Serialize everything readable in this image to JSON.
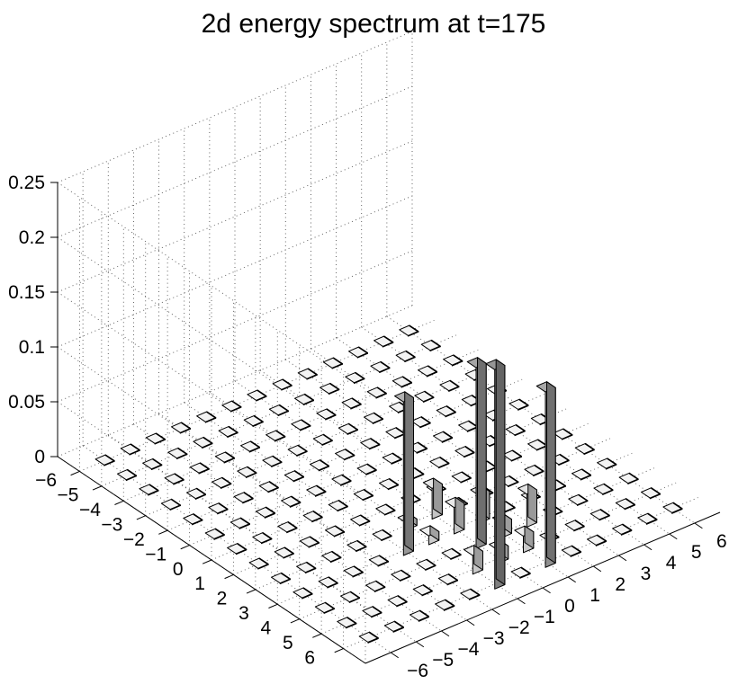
{
  "chart_data": {
    "type": "bar3d",
    "title": "2d energy spectrum at t=175",
    "xlabel": "",
    "ylabel": "",
    "zlabel": "",
    "x_ticks": [
      "−6",
      "−5",
      "−4",
      "−3",
      "−2",
      "−1",
      "0",
      "1",
      "2",
      "3",
      "4",
      "5",
      "6"
    ],
    "y_ticks": [
      "−6",
      "−5",
      "−4",
      "−3",
      "−2",
      "−1",
      "0",
      "1",
      "2",
      "3",
      "4",
      "5",
      "6"
    ],
    "z_ticks": [
      "0",
      "0.05",
      "0.1",
      "0.15",
      "0.2",
      "0.25"
    ],
    "zlim": [
      0,
      0.25
    ],
    "grid": true,
    "colormap": "gray",
    "bars": [
      {
        "i": 6,
        "j": -1,
        "z": 0.2
      },
      {
        "i": 4,
        "j": 0,
        "z": 0.165
      },
      {
        "i": 3,
        "j": -2,
        "z": 0.14
      },
      {
        "i": 6,
        "j": 1,
        "z": 0.16
      },
      {
        "i": 5,
        "j": 1,
        "z": 0.015
      },
      {
        "i": 5,
        "j": -1,
        "z": 0.017
      },
      {
        "i": 4,
        "j": 1,
        "z": 0.013
      },
      {
        "i": 2,
        "j": 0,
        "z": 0.028
      },
      {
        "i": 4,
        "j": 2,
        "z": 0.03
      },
      {
        "i": 3,
        "j": 0,
        "z": 0.024
      },
      {
        "i": 3,
        "j": 1,
        "z": 0.025
      },
      {
        "i": 5,
        "j": 0,
        "z": 0.012
      },
      {
        "i": 3,
        "j": -1,
        "z": 0.008
      },
      {
        "i": 2,
        "j": -1,
        "z": 0.006
      }
    ]
  }
}
